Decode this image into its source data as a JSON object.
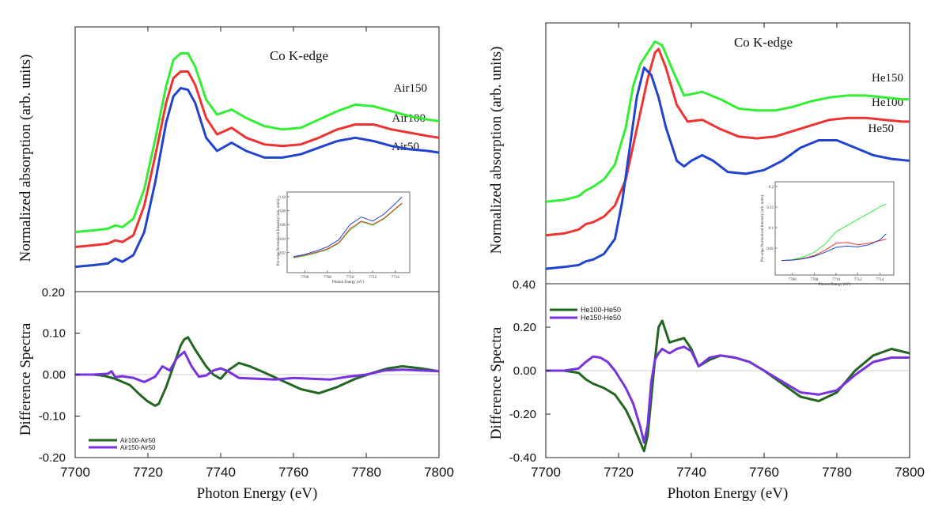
{
  "chart_data": [
    {
      "type": "line",
      "panel": "left",
      "title": "Co K-edge",
      "xlabel": "Photon Energy (eV)",
      "xlim": [
        7700,
        7800
      ],
      "x_ticks": [
        "7700",
        "7720",
        "7740",
        "7760",
        "7780",
        "7800"
      ],
      "top": {
        "ylabel": "Normalized absorption (arb. units)",
        "y_ticks": [
          "0.20"
        ],
        "series": [
          {
            "name": "Air150",
            "color": "#33ee33",
            "x": [
              7700,
              7705,
              7709,
              7711,
              7713,
              7716,
              7719,
              7722,
              7725,
              7727,
              7729,
              7731,
              7733,
              7736,
              7739,
              7743,
              7747,
              7752,
              7757,
              7762,
              7767,
              7772,
              7777,
              7782,
              7787,
              7792,
              7797,
              7800
            ],
            "y": [
              0.38,
              0.385,
              0.39,
              0.4,
              0.395,
              0.42,
              0.51,
              0.66,
              0.82,
              0.9,
              0.92,
              0.92,
              0.88,
              0.78,
              0.735,
              0.75,
              0.725,
              0.7,
              0.69,
              0.695,
              0.72,
              0.745,
              0.765,
              0.76,
              0.745,
              0.73,
              0.72,
              0.715
            ]
          },
          {
            "name": "Air100",
            "color": "#ee3333",
            "x": [
              7700,
              7705,
              7709,
              7711,
              7713,
              7716,
              7719,
              7722,
              7725,
              7727,
              7729,
              7731,
              7733,
              7736,
              7739,
              7743,
              7747,
              7752,
              7757,
              7762,
              7767,
              7772,
              7777,
              7782,
              7787,
              7792,
              7797,
              7800
            ],
            "y": [
              0.335,
              0.34,
              0.345,
              0.355,
              0.35,
              0.37,
              0.46,
              0.61,
              0.77,
              0.845,
              0.865,
              0.865,
              0.825,
              0.725,
              0.675,
              0.695,
              0.665,
              0.645,
              0.64,
              0.645,
              0.665,
              0.69,
              0.705,
              0.705,
              0.69,
              0.68,
              0.67,
              0.665
            ]
          },
          {
            "name": "Air50",
            "color": "#2244cc",
            "x": [
              7700,
              7705,
              7709,
              7711,
              7713,
              7716,
              7719,
              7722,
              7725,
              7727,
              7729,
              7731,
              7733,
              7736,
              7739,
              7743,
              7747,
              7752,
              7757,
              7762,
              7767,
              7772,
              7777,
              7782,
              7787,
              7792,
              7797,
              7800
            ],
            "y": [
              0.275,
              0.28,
              0.285,
              0.3,
              0.29,
              0.31,
              0.38,
              0.53,
              0.71,
              0.79,
              0.815,
              0.81,
              0.77,
              0.665,
              0.625,
              0.65,
              0.625,
              0.605,
              0.605,
              0.615,
              0.635,
              0.655,
              0.665,
              0.655,
              0.64,
              0.63,
              0.625,
              0.62
            ]
          }
        ]
      },
      "bottom": {
        "ylabel": "Difference Spectra",
        "ylim": [
          -0.2,
          0.2
        ],
        "y_ticks": [
          "-0.20",
          "-0.10",
          "0.00",
          "0.10"
        ],
        "series": [
          {
            "name": "Air100-Air50",
            "color": "#226622",
            "x": [
              7700,
              7705,
              7708,
              7711,
              7715,
              7718,
              7720,
              7722,
              7723,
              7725,
              7727,
              7729,
              7730,
              7731,
              7733,
              7736,
              7738,
              7740,
              7742,
              7745,
              7748,
              7752,
              7757,
              7762,
              7767,
              7772,
              7777,
              7782,
              7786,
              7790,
              7795,
              7800
            ],
            "y": [
              0.0,
              0.0,
              -0.003,
              -0.01,
              -0.025,
              -0.05,
              -0.065,
              -0.075,
              -0.07,
              -0.03,
              0.02,
              0.07,
              0.085,
              0.09,
              0.06,
              0.02,
              0.0,
              -0.01,
              0.01,
              0.028,
              0.02,
              0.005,
              -0.015,
              -0.035,
              -0.045,
              -0.03,
              -0.01,
              0.005,
              0.015,
              0.02,
              0.015,
              0.008
            ]
          },
          {
            "name": "Air150-Air50",
            "color": "#7733dd",
            "x": [
              7700,
              7705,
              7709,
              7710,
              7711,
              7713,
              7716,
              7719,
              7722,
              7724,
              7726,
              7728,
              7730,
              7732,
              7734,
              7736,
              7738,
              7740,
              7742,
              7745,
              7750,
              7755,
              7760,
              7765,
              7770,
              7775,
              7780,
              7785,
              7790,
              7795,
              7800
            ],
            "y": [
              0.0,
              0.0,
              0.002,
              0.008,
              -0.006,
              -0.004,
              -0.008,
              -0.018,
              -0.005,
              0.02,
              0.01,
              0.04,
              0.055,
              0.02,
              -0.005,
              -0.002,
              0.01,
              0.015,
              0.008,
              -0.008,
              -0.01,
              -0.012,
              -0.008,
              -0.01,
              -0.012,
              -0.005,
              0.0,
              0.01,
              0.012,
              0.01,
              0.008
            ]
          }
        ]
      },
      "inset": {
        "xlabel": "Photon Energy (eV)",
        "ylabel": "Pre-edge Normalized Intensity (arb. units)",
        "x_ticks": [
          "7706",
          "7708",
          "7710",
          "7712",
          "7714"
        ],
        "y_ticks": [
          "0.02",
          "0.04",
          "0.06",
          "0.08",
          "0.10"
        ],
        "series": [
          {
            "color": "#33ee33",
            "x": [
              7705,
              7706,
              7707,
              7708,
              7709,
              7710,
              7711,
              7712,
              7713,
              7714,
              7714.6
            ],
            "y": [
              0.012,
              0.015,
              0.019,
              0.024,
              0.033,
              0.052,
              0.064,
              0.059,
              0.068,
              0.082,
              0.09
            ]
          },
          {
            "color": "#ee3333",
            "x": [
              7705,
              7706,
              7707,
              7708,
              7709,
              7710,
              7711,
              7712,
              7713,
              7714,
              7714.6
            ],
            "y": [
              0.013,
              0.016,
              0.02,
              0.025,
              0.034,
              0.054,
              0.065,
              0.06,
              0.069,
              0.083,
              0.091
            ]
          },
          {
            "color": "#2244cc",
            "x": [
              7705,
              7706,
              7707,
              7708,
              7709,
              7710,
              7711,
              7712,
              7713,
              7714,
              7714.6
            ],
            "y": [
              0.014,
              0.017,
              0.022,
              0.028,
              0.038,
              0.06,
              0.071,
              0.065,
              0.075,
              0.09,
              0.1
            ]
          }
        ]
      }
    },
    {
      "type": "line",
      "panel": "right",
      "title": "Co K-edge",
      "xlabel": "Photon Energy (eV)",
      "xlim": [
        7700,
        7800
      ],
      "x_ticks": [
        "7700",
        "7720",
        "7740",
        "7760",
        "7780",
        "7800"
      ],
      "top": {
        "ylabel": "Normalized absorption (arb. units)",
        "y_ticks": [
          "0.40"
        ],
        "series": [
          {
            "name": "He150",
            "color": "#33ee33",
            "x": [
              7700,
              7705,
              7709,
              7711,
              7713,
              7716,
              7719,
              7722,
              7724,
              7726,
              7728,
              7730,
              7732,
              7735,
              7738,
              7743,
              7748,
              7753,
              7758,
              7763,
              7768,
              7773,
              7778,
              7783,
              7788,
              7793,
              7798,
              7800
            ],
            "y": [
              0.62,
              0.625,
              0.635,
              0.65,
              0.66,
              0.68,
              0.72,
              0.82,
              0.93,
              0.99,
              1.02,
              1.05,
              1.04,
              0.97,
              0.905,
              0.915,
              0.895,
              0.87,
              0.865,
              0.865,
              0.875,
              0.89,
              0.9,
              0.905,
              0.905,
              0.9,
              0.895,
              0.895
            ]
          },
          {
            "name": "He100",
            "color": "#ee3333",
            "x": [
              7700,
              7705,
              7709,
              7711,
              7713,
              7716,
              7719,
              7722,
              7724,
              7726,
              7728,
              7730,
              7731,
              7733,
              7736,
              7739,
              7743,
              7748,
              7753,
              7758,
              7763,
              7768,
              7773,
              7778,
              7783,
              7788,
              7793,
              7798,
              7800
            ],
            "y": [
              0.53,
              0.535,
              0.545,
              0.56,
              0.565,
              0.58,
              0.61,
              0.68,
              0.77,
              0.86,
              0.95,
              1.02,
              1.03,
              0.98,
              0.88,
              0.835,
              0.84,
              0.815,
              0.795,
              0.79,
              0.795,
              0.81,
              0.825,
              0.84,
              0.845,
              0.845,
              0.84,
              0.835,
              0.835
            ]
          },
          {
            "name": "He50",
            "color": "#2244cc",
            "x": [
              7700,
              7705,
              7709,
              7711,
              7713,
              7716,
              7719,
              7721,
              7723,
              7725,
              7727,
              7729,
              7731,
              7733,
              7736,
              7738,
              7740,
              7743,
              7746,
              7750,
              7755,
              7760,
              7765,
              7770,
              7775,
              7780,
              7785,
              7790,
              7795,
              7800
            ],
            "y": [
              0.44,
              0.445,
              0.45,
              0.46,
              0.465,
              0.48,
              0.52,
              0.62,
              0.76,
              0.9,
              0.98,
              0.96,
              0.9,
              0.82,
              0.73,
              0.715,
              0.73,
              0.745,
              0.73,
              0.7,
              0.695,
              0.705,
              0.73,
              0.765,
              0.785,
              0.785,
              0.765,
              0.745,
              0.735,
              0.73
            ]
          }
        ]
      },
      "bottom": {
        "ylabel": "Difference Spectra",
        "ylim": [
          -0.4,
          0.4
        ],
        "y_ticks": [
          "-0.40",
          "-0.20",
          "0.00",
          "0.20"
        ],
        "legend": [
          "He100-He50",
          "He150-He50"
        ],
        "series": [
          {
            "name": "He100-He50",
            "color": "#226622",
            "x": [
              7700,
              7705,
              7709,
              7711,
              7713,
              7716,
              7719,
              7722,
              7724,
              7726,
              7727,
              7728,
              7730,
              7731,
              7732,
              7734,
              7736,
              7738,
              7740,
              7742,
              7745,
              7748,
              7752,
              7756,
              7760,
              7765,
              7770,
              7775,
              7780,
              7785,
              7790,
              7795,
              7800
            ],
            "y": [
              0.0,
              0.0,
              -0.01,
              -0.04,
              -0.06,
              -0.08,
              -0.11,
              -0.18,
              -0.25,
              -0.33,
              -0.37,
              -0.3,
              0.05,
              0.2,
              0.23,
              0.13,
              0.14,
              0.15,
              0.1,
              0.02,
              0.05,
              0.07,
              0.06,
              0.04,
              0.0,
              -0.06,
              -0.12,
              -0.14,
              -0.1,
              0.0,
              0.07,
              0.1,
              0.08
            ]
          },
          {
            "name": "He150-He50",
            "color": "#7733dd",
            "x": [
              7700,
              7705,
              7709,
              7711,
              7713,
              7715,
              7717,
              7719,
              7722,
              7724,
              7726,
              7727,
              7728,
              7729,
              7730,
              7731,
              7732,
              7734,
              7736,
              7738,
              7740,
              7742,
              7745,
              7748,
              7752,
              7756,
              7760,
              7765,
              7770,
              7775,
              7780,
              7785,
              7790,
              7795,
              7800
            ],
            "y": [
              0.0,
              0.0,
              0.01,
              0.04,
              0.065,
              0.06,
              0.04,
              0.0,
              -0.08,
              -0.15,
              -0.26,
              -0.33,
              -0.25,
              -0.05,
              0.05,
              0.08,
              0.1,
              0.08,
              0.1,
              0.11,
              0.09,
              0.02,
              0.06,
              0.07,
              0.06,
              0.04,
              0.0,
              -0.05,
              -0.1,
              -0.11,
              -0.09,
              -0.02,
              0.04,
              0.06,
              0.06
            ]
          }
        ]
      },
      "inset": {
        "xlabel": "Photon Energy (eV)",
        "ylabel": "Pre-edge Normalized Intensity (arb. units)",
        "x_ticks": [
          "7706",
          "7708",
          "7710",
          "7712",
          "7714"
        ],
        "y_ticks": [
          "0.05",
          "0.1",
          "0.15",
          "0.2"
        ],
        "series": [
          {
            "color": "#33ee33",
            "x": [
              7705,
              7706,
              7707,
              7708,
              7709,
              7710,
              7711,
              7712,
              7713,
              7714,
              7714.6
            ],
            "y": [
              0.02,
              0.022,
              0.028,
              0.04,
              0.06,
              0.09,
              0.105,
              0.12,
              0.135,
              0.15,
              0.158
            ]
          },
          {
            "color": "#ee3333",
            "x": [
              7705,
              7706,
              7707,
              7708,
              7709,
              7710,
              7711,
              7712,
              7713,
              7714,
              7714.6
            ],
            "y": [
              0.02,
              0.021,
              0.025,
              0.032,
              0.045,
              0.062,
              0.064,
              0.058,
              0.062,
              0.068,
              0.072
            ]
          },
          {
            "color": "#2244cc",
            "x": [
              7705,
              7706,
              7707,
              7708,
              7709,
              7710,
              7711,
              7712,
              7713,
              7714,
              7714.6
            ],
            "y": [
              0.02,
              0.021,
              0.024,
              0.03,
              0.04,
              0.052,
              0.055,
              0.053,
              0.058,
              0.07,
              0.085
            ]
          }
        ]
      }
    }
  ]
}
